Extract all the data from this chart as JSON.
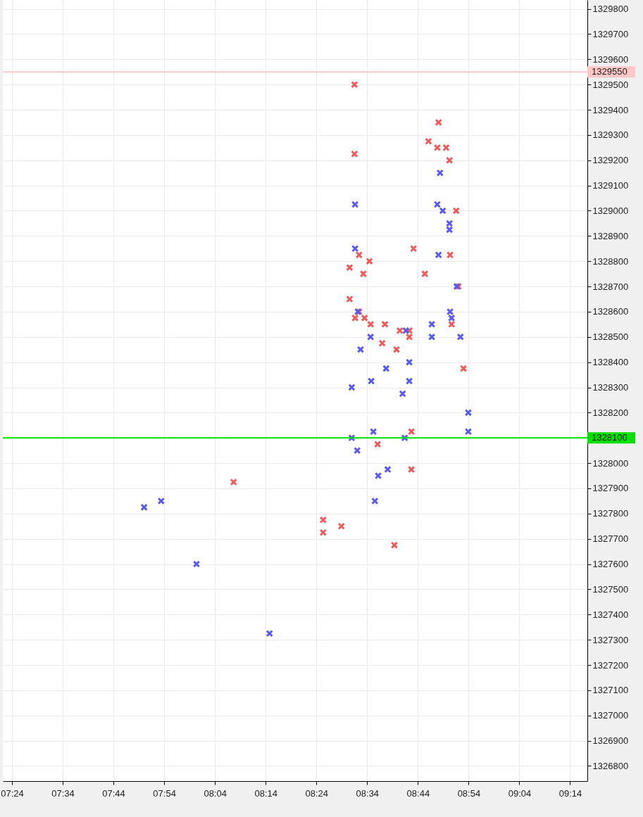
{
  "chart_data": {
    "type": "scatter",
    "marker": "cross",
    "grid": true,
    "xlim": [
      7.37,
      9.29
    ],
    "ylim": [
      1326740,
      1329835
    ],
    "xticks": [
      {
        "value": 7.4,
        "label": "07:24"
      },
      {
        "value": 7.5667,
        "label": "07:34"
      },
      {
        "value": 7.7333,
        "label": "07:44"
      },
      {
        "value": 7.9,
        "label": "07:54"
      },
      {
        "value": 8.0667,
        "label": "08:04"
      },
      {
        "value": 8.2333,
        "label": "08:14"
      },
      {
        "value": 8.4,
        "label": "08:24"
      },
      {
        "value": 8.5667,
        "label": "08:34"
      },
      {
        "value": 8.7333,
        "label": "08:44"
      },
      {
        "value": 8.9,
        "label": "08:54"
      },
      {
        "value": 9.0667,
        "label": "09:04"
      },
      {
        "value": 9.2333,
        "label": "09:14"
      }
    ],
    "yticks": [
      1326800,
      1326900,
      1327000,
      1327100,
      1327200,
      1327300,
      1327400,
      1327500,
      1327600,
      1327700,
      1327800,
      1327900,
      1328000,
      {
        "value": 1328100,
        "label": null
      },
      1328200,
      1328300,
      1328400,
      1328500,
      1328600,
      1328700,
      1328800,
      1328900,
      1329000,
      1329100,
      1329200,
      1329300,
      1329400,
      1329500,
      1329600,
      1329700,
      1329800
    ],
    "ref_lines": [
      {
        "axis": "y",
        "value": 1329550,
        "label": "1329550",
        "color": "#ffc8c8"
      },
      {
        "axis": "y",
        "value": 1328100,
        "label": "1328100",
        "color": "#00e000"
      }
    ],
    "series": [
      {
        "color": "#f05a5a",
        "x": [
          8.525,
          8.525,
          8.128,
          8.422,
          8.422,
          8.482,
          8.509,
          8.509,
          8.54,
          8.554,
          8.574,
          8.527,
          8.54,
          8.558,
          8.578,
          8.625,
          8.616,
          8.663,
          8.674,
          8.705,
          8.705,
          8.719,
          8.756,
          8.601,
          8.712,
          8.712,
          8.656,
          8.768,
          8.801,
          8.797,
          8.826,
          8.837,
          8.859,
          8.839,
          8.866,
          8.844,
          8.883
        ],
        "values": [
          1329500,
          1329225,
          1327925,
          1327775,
          1327725,
          1327750,
          1328650,
          1328775,
          1328825,
          1328750,
          1328800,
          1328575,
          1328600,
          1328575,
          1328550,
          1328550,
          1328475,
          1328450,
          1328525,
          1328525,
          1328500,
          1328850,
          1328750,
          1328075,
          1328125,
          1327975,
          1327675,
          1329275,
          1329350,
          1329250,
          1329250,
          1329200,
          1329000,
          1328825,
          1328700,
          1328550,
          1328375
        ]
      },
      {
        "color": "#5a5af0",
        "x": [
          7.834,
          7.89,
          8.006,
          8.246,
          8.527,
          8.527,
          8.536,
          8.545,
          8.516,
          8.516,
          8.534,
          8.578,
          8.58,
          8.587,
          8.592,
          8.603,
          8.634,
          8.629,
          8.683,
          8.69,
          8.694,
          8.705,
          8.705,
          8.779,
          8.779,
          8.801,
          8.806,
          8.797,
          8.815,
          8.837,
          8.837,
          8.839,
          8.844,
          8.861,
          8.873,
          8.899,
          8.899
        ],
        "values": [
          1327825,
          1327850,
          1327600,
          1327325,
          1329025,
          1328850,
          1328600,
          1328450,
          1328300,
          1328100,
          1328050,
          1328500,
          1328325,
          1328125,
          1327850,
          1327950,
          1327975,
          1328375,
          1328275,
          1328100,
          1328525,
          1328400,
          1328325,
          1328550,
          1328500,
          1328825,
          1329150,
          1329025,
          1329000,
          1328950,
          1328925,
          1328600,
          1328575,
          1328700,
          1328500,
          1328200,
          1328125
        ]
      }
    ]
  }
}
